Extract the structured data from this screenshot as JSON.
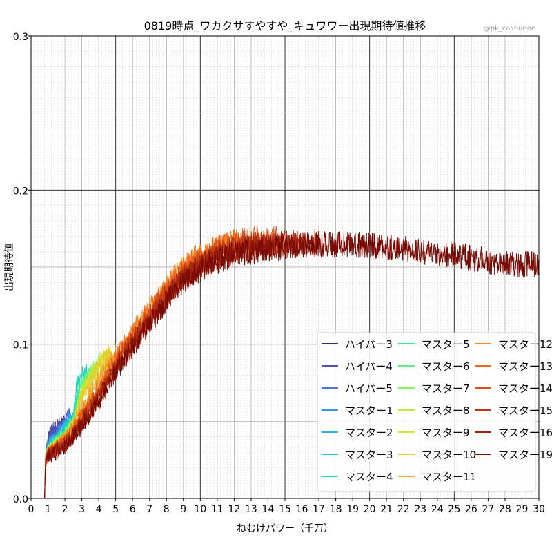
{
  "chart_data": {
    "type": "line",
    "title": "0819時点_ワカクサすやすや_キュワワー出現期待値推移",
    "watermark": "@pk_cashunoe",
    "xlabel": "ねむけパワー（千万）",
    "ylabel": "出現期待値",
    "xlim": [
      0,
      30
    ],
    "ylim": [
      0.0,
      0.3
    ],
    "x_ticks": [
      "0",
      "1",
      "2",
      "3",
      "4",
      "5",
      "6",
      "7",
      "8",
      "9",
      "10",
      "11",
      "12",
      "13",
      "14",
      "15",
      "16",
      "17",
      "18",
      "19",
      "20",
      "21",
      "22",
      "23",
      "24",
      "25",
      "26",
      "27",
      "28",
      "29",
      "30"
    ],
    "y_ticks": [
      "0.0",
      "0.1",
      "0.2",
      "0.3"
    ],
    "grid": "major and minor",
    "legend_position": "lower-right",
    "legend_columns": 3,
    "series": [
      {
        "name": "ハイパー3",
        "color": "#3b2a6b",
        "x": [
          0.0,
          0.8,
          0.85,
          1.0,
          1.2,
          1.5,
          1.8,
          2.0
        ],
        "y": [
          0.0,
          0.0,
          0.026,
          0.036,
          0.043,
          0.046,
          0.049,
          0.05
        ]
      },
      {
        "name": "ハイパー4",
        "color": "#4a50b8",
        "x": [
          0.0,
          0.8,
          0.85,
          1.0,
          1.2,
          1.5,
          1.8,
          2.1
        ],
        "y": [
          0.0,
          0.0,
          0.027,
          0.038,
          0.044,
          0.045,
          0.048,
          0.05
        ]
      },
      {
        "name": "ハイパー5",
        "color": "#4b72e0",
        "x": [
          0.0,
          0.8,
          0.85,
          1.0,
          1.3,
          1.6,
          2.0,
          2.3
        ],
        "y": [
          0.0,
          0.0,
          0.026,
          0.035,
          0.04,
          0.043,
          0.049,
          0.055
        ]
      },
      {
        "name": "マスター1",
        "color": "#3a93ea",
        "x": [
          0.0,
          0.8,
          0.85,
          1.0,
          1.5,
          2.0,
          2.3,
          2.6
        ],
        "y": [
          0.0,
          0.0,
          0.026,
          0.034,
          0.04,
          0.047,
          0.052,
          0.058
        ]
      },
      {
        "name": "マスター2",
        "color": "#2db0e0",
        "x": [
          0.0,
          0.8,
          0.85,
          1.0,
          1.5,
          2.0,
          2.4,
          2.7
        ],
        "y": [
          0.0,
          0.0,
          0.025,
          0.033,
          0.039,
          0.045,
          0.05,
          0.056
        ]
      },
      {
        "name": "マスター3",
        "color": "#1fc9cf",
        "x": [
          0.0,
          0.8,
          0.85,
          1.0,
          1.5,
          2.0,
          2.5,
          2.7,
          2.9
        ],
        "y": [
          0.0,
          0.0,
          0.025,
          0.032,
          0.038,
          0.044,
          0.053,
          0.075,
          0.08
        ]
      },
      {
        "name": "マスター4",
        "color": "#1ddbb0",
        "x": [
          0.0,
          0.8,
          0.85,
          1.0,
          1.5,
          2.0,
          2.5,
          2.7,
          3.0,
          3.3
        ],
        "y": [
          0.0,
          0.0,
          0.025,
          0.032,
          0.037,
          0.043,
          0.052,
          0.074,
          0.08,
          0.084
        ]
      },
      {
        "name": "マスター5",
        "color": "#35e89a",
        "x": [
          0.0,
          0.8,
          0.85,
          1.0,
          1.5,
          2.0,
          2.5,
          2.8,
          3.2,
          3.6
        ],
        "y": [
          0.0,
          0.0,
          0.025,
          0.031,
          0.036,
          0.042,
          0.05,
          0.07,
          0.077,
          0.082
        ]
      },
      {
        "name": "マスター6",
        "color": "#56f07a",
        "x": [
          0.0,
          0.8,
          0.85,
          1.0,
          1.5,
          2.0,
          2.5,
          3.0,
          3.4,
          3.9
        ],
        "y": [
          0.0,
          0.0,
          0.025,
          0.031,
          0.035,
          0.041,
          0.049,
          0.071,
          0.078,
          0.086
        ]
      },
      {
        "name": "マスター7",
        "color": "#85f55a",
        "x": [
          0.0,
          0.8,
          0.85,
          1.0,
          1.5,
          2.0,
          2.5,
          3.0,
          3.5,
          4.1
        ],
        "y": [
          0.0,
          0.0,
          0.024,
          0.03,
          0.035,
          0.04,
          0.048,
          0.07,
          0.08,
          0.09
        ]
      },
      {
        "name": "マスター8",
        "color": "#b2f040",
        "x": [
          0.0,
          0.8,
          0.85,
          1.0,
          1.5,
          2.0,
          2.5,
          3.0,
          3.5,
          4.0,
          4.4
        ],
        "y": [
          0.0,
          0.0,
          0.024,
          0.03,
          0.034,
          0.04,
          0.047,
          0.069,
          0.079,
          0.086,
          0.092
        ]
      },
      {
        "name": "マスター9",
        "color": "#d7e136",
        "x": [
          0.0,
          0.8,
          0.85,
          1.0,
          1.5,
          2.0,
          2.5,
          3.0,
          3.5,
          4.0,
          4.6
        ],
        "y": [
          0.0,
          0.0,
          0.024,
          0.03,
          0.034,
          0.039,
          0.047,
          0.068,
          0.078,
          0.087,
          0.094
        ]
      },
      {
        "name": "マスター10",
        "color": "#ecc92c",
        "x": [
          0.0,
          0.8,
          0.85,
          1.0,
          1.5,
          2.0,
          2.5,
          3.0,
          3.5,
          4.0,
          4.5,
          4.8
        ],
        "y": [
          0.0,
          0.0,
          0.024,
          0.03,
          0.034,
          0.039,
          0.046,
          0.066,
          0.076,
          0.085,
          0.092,
          0.096
        ]
      },
      {
        "name": "マスター11",
        "color": "#f3a926",
        "x": [
          0.0,
          0.8,
          0.85,
          1.0,
          1.5,
          2.0,
          2.5,
          3.0,
          3.5,
          4.0,
          4.5,
          5.0
        ],
        "y": [
          0.0,
          0.0,
          0.024,
          0.029,
          0.033,
          0.038,
          0.046,
          0.058,
          0.068,
          0.077,
          0.086,
          0.094
        ]
      },
      {
        "name": "マスター12",
        "color": "#f58a24",
        "x": [
          0.0,
          0.8,
          0.85,
          1.0,
          2.0,
          3.0,
          4.0,
          5.0,
          6.0,
          7.0,
          8.0,
          9.0,
          10.0,
          11.0,
          12.0,
          12.3
        ],
        "y": [
          0.0,
          0.0,
          0.024,
          0.029,
          0.038,
          0.055,
          0.072,
          0.092,
          0.108,
          0.123,
          0.138,
          0.15,
          0.158,
          0.163,
          0.167,
          0.168
        ]
      },
      {
        "name": "マスター13",
        "color": "#eb6b1e",
        "x": [
          0.0,
          0.8,
          0.85,
          1.0,
          2.0,
          3.0,
          4.0,
          5.0,
          6.0,
          7.0,
          8.0,
          9.0,
          10.0,
          11.0,
          12.0,
          13.0,
          13.5
        ],
        "y": [
          0.0,
          0.0,
          0.024,
          0.029,
          0.037,
          0.053,
          0.07,
          0.09,
          0.106,
          0.121,
          0.136,
          0.148,
          0.157,
          0.162,
          0.166,
          0.168,
          0.169
        ]
      },
      {
        "name": "マスター14",
        "color": "#d74e18",
        "x": [
          0.0,
          0.8,
          0.85,
          1.0,
          2.0,
          3.0,
          4.0,
          5.0,
          6.0,
          7.0,
          8.0,
          9.0,
          10.0,
          11.0,
          12.0,
          13.0,
          14.0,
          14.5
        ],
        "y": [
          0.0,
          0.0,
          0.023,
          0.029,
          0.036,
          0.052,
          0.068,
          0.088,
          0.104,
          0.119,
          0.134,
          0.146,
          0.155,
          0.16,
          0.164,
          0.166,
          0.167,
          0.168
        ]
      },
      {
        "name": "マスター15",
        "color": "#bd3613",
        "x": [
          0.0,
          0.8,
          0.85,
          1.0,
          2.0,
          3.0,
          4.0,
          5.0,
          6.0,
          7.0,
          8.0,
          9.0,
          10.0,
          11.0,
          12.0,
          13.0,
          14.0,
          15.0,
          16.0
        ],
        "y": [
          0.0,
          0.0,
          0.023,
          0.028,
          0.035,
          0.05,
          0.066,
          0.086,
          0.102,
          0.117,
          0.132,
          0.144,
          0.153,
          0.158,
          0.162,
          0.164,
          0.165,
          0.166,
          0.167
        ]
      },
      {
        "name": "マスター16",
        "color": "#9e200d",
        "x": [
          0.0,
          0.8,
          0.85,
          1.0,
          2.0,
          3.0,
          4.0,
          5.0,
          6.0,
          7.0,
          8.0,
          9.0,
          10.0,
          11.0,
          12.0,
          13.0,
          14.0,
          15.0,
          16.0,
          17.0
        ],
        "y": [
          0.0,
          0.0,
          0.023,
          0.028,
          0.034,
          0.049,
          0.065,
          0.084,
          0.1,
          0.115,
          0.13,
          0.142,
          0.151,
          0.156,
          0.16,
          0.162,
          0.163,
          0.164,
          0.165,
          0.166
        ]
      },
      {
        "name": "マスター19",
        "color": "#7a0a04",
        "x": [
          0.0,
          0.8,
          0.85,
          1.0,
          1.5,
          2.0,
          3.0,
          4.0,
          5.0,
          6.0,
          7.0,
          8.0,
          9.0,
          10.0,
          11.0,
          12.0,
          13.0,
          14.0,
          15.0,
          16.0,
          17.0,
          18.0,
          19.0,
          20.0,
          21.0,
          22.0,
          23.0,
          24.0,
          25.0,
          26.0,
          27.0,
          28.0,
          29.0,
          30.0
        ],
        "y": [
          0.0,
          0.0,
          0.022,
          0.027,
          0.03,
          0.033,
          0.047,
          0.063,
          0.082,
          0.098,
          0.113,
          0.128,
          0.14,
          0.149,
          0.154,
          0.158,
          0.16,
          0.162,
          0.163,
          0.164,
          0.165,
          0.165,
          0.165,
          0.164,
          0.163,
          0.162,
          0.16,
          0.159,
          0.158,
          0.156,
          0.154,
          0.152,
          0.152,
          0.152
        ]
      }
    ]
  }
}
